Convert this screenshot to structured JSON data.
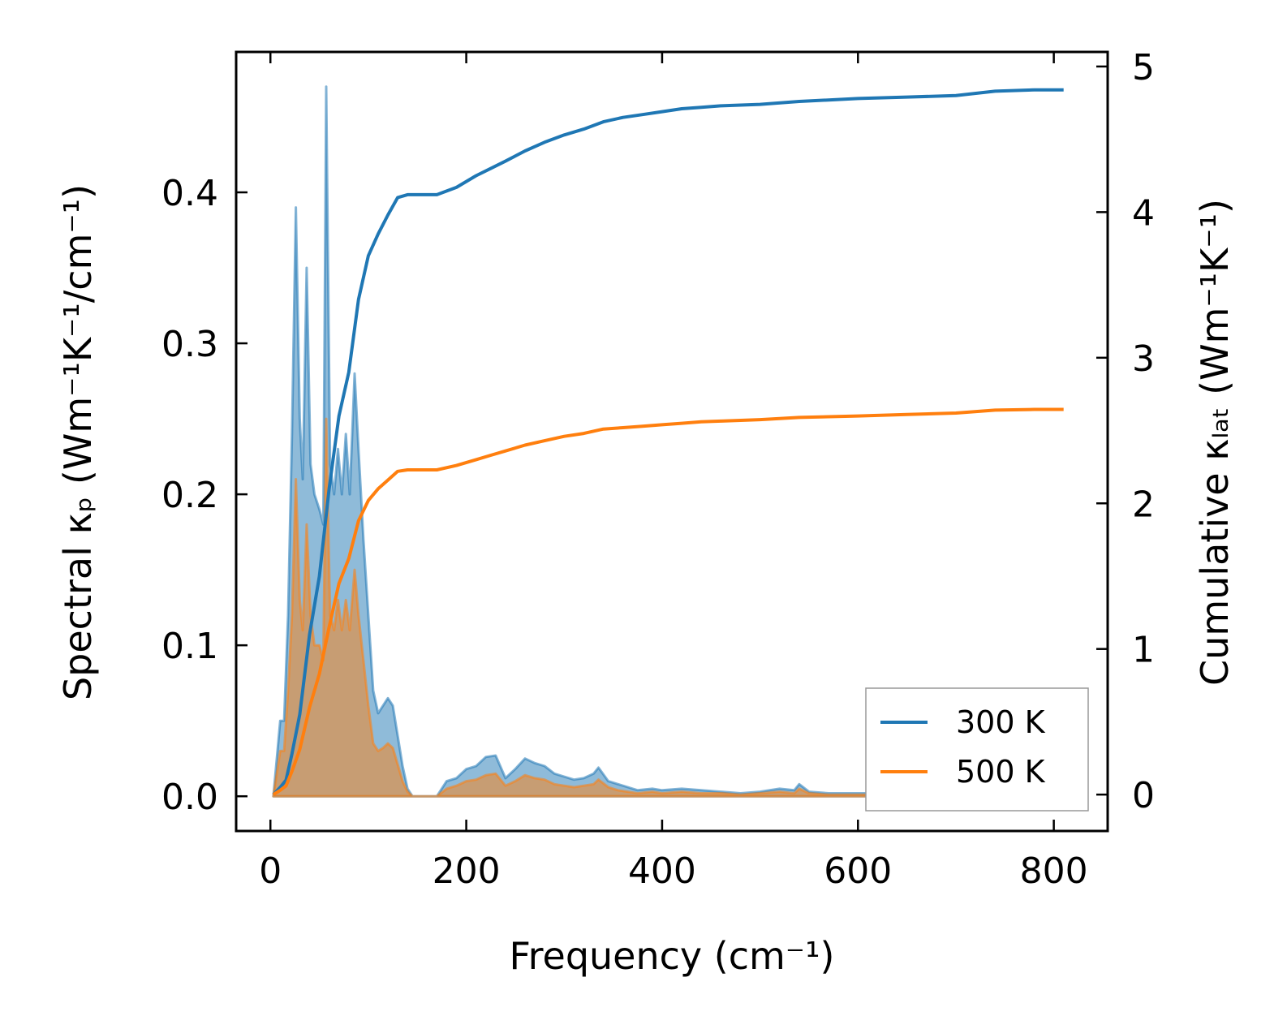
{
  "chart_data": {
    "type": "area",
    "xlabel": "Frequency (cm⁻¹)",
    "ylabel_left": "Spectral κₚ (Wm⁻¹K⁻¹/cm⁻¹)",
    "ylabel_right": "Cumulative κₗₐₜ (Wm⁻¹K⁻¹)",
    "xlim": [
      -35,
      855
    ],
    "ylim_left": [
      -0.023,
      0.493
    ],
    "ylim_right": [
      -0.25,
      5.1
    ],
    "x_ticks": [
      0,
      200,
      400,
      600,
      800
    ],
    "x_tick_labels": [
      "0",
      "200",
      "400",
      "600",
      "800"
    ],
    "y_left_ticks": [
      0.0,
      0.1,
      0.2,
      0.3,
      0.4
    ],
    "y_left_tick_labels": [
      "0.0",
      "0.1",
      "0.2",
      "0.3",
      "0.4"
    ],
    "y_right_ticks": [
      0,
      1,
      2,
      3,
      4,
      5
    ],
    "y_right_tick_labels": [
      "0",
      "1",
      "2",
      "3",
      "4",
      "5"
    ],
    "legend_position": "bottom-right",
    "series": [
      {
        "name": "300 K",
        "color": "#1f77b4",
        "spectral": [
          [
            3,
            0.0
          ],
          [
            10,
            0.05
          ],
          [
            14,
            0.05
          ],
          [
            18,
            0.12
          ],
          [
            22,
            0.24
          ],
          [
            26,
            0.39
          ],
          [
            30,
            0.25
          ],
          [
            33,
            0.21
          ],
          [
            37,
            0.35
          ],
          [
            41,
            0.22
          ],
          [
            45,
            0.2
          ],
          [
            50,
            0.19
          ],
          [
            54,
            0.18
          ],
          [
            57,
            0.47
          ],
          [
            61,
            0.22
          ],
          [
            65,
            0.2
          ],
          [
            69,
            0.23
          ],
          [
            73,
            0.2
          ],
          [
            77,
            0.24
          ],
          [
            81,
            0.2
          ],
          [
            86,
            0.28
          ],
          [
            90,
            0.23
          ],
          [
            95,
            0.17
          ],
          [
            100,
            0.12
          ],
          [
            105,
            0.07
          ],
          [
            110,
            0.055
          ],
          [
            115,
            0.06
          ],
          [
            120,
            0.065
          ],
          [
            125,
            0.06
          ],
          [
            130,
            0.04
          ],
          [
            135,
            0.02
          ],
          [
            140,
            0.005
          ],
          [
            145,
            0.0
          ],
          [
            155,
            0.0
          ],
          [
            170,
            0.0
          ],
          [
            180,
            0.01
          ],
          [
            190,
            0.012
          ],
          [
            200,
            0.018
          ],
          [
            210,
            0.02
          ],
          [
            220,
            0.026
          ],
          [
            230,
            0.027
          ],
          [
            240,
            0.012
          ],
          [
            250,
            0.018
          ],
          [
            260,
            0.025
          ],
          [
            270,
            0.022
          ],
          [
            280,
            0.02
          ],
          [
            290,
            0.015
          ],
          [
            300,
            0.013
          ],
          [
            310,
            0.011
          ],
          [
            320,
            0.012
          ],
          [
            330,
            0.015
          ],
          [
            335,
            0.019
          ],
          [
            345,
            0.01
          ],
          [
            355,
            0.008
          ],
          [
            365,
            0.006
          ],
          [
            375,
            0.004
          ],
          [
            390,
            0.005
          ],
          [
            400,
            0.004
          ],
          [
            420,
            0.005
          ],
          [
            440,
            0.004
          ],
          [
            460,
            0.003
          ],
          [
            480,
            0.002
          ],
          [
            500,
            0.003
          ],
          [
            520,
            0.005
          ],
          [
            535,
            0.004
          ],
          [
            540,
            0.008
          ],
          [
            550,
            0.003
          ],
          [
            570,
            0.002
          ],
          [
            600,
            0.002
          ],
          [
            630,
            0.002
          ],
          [
            660,
            0.003
          ],
          [
            700,
            0.003
          ],
          [
            720,
            0.005
          ],
          [
            740,
            0.003
          ],
          [
            760,
            0.001
          ],
          [
            790,
            0.001
          ],
          [
            810,
            0.0
          ]
        ],
        "cumulative": [
          [
            3,
            0.0
          ],
          [
            10,
            0.05
          ],
          [
            16,
            0.1
          ],
          [
            22,
            0.28
          ],
          [
            30,
            0.55
          ],
          [
            40,
            1.1
          ],
          [
            50,
            1.5
          ],
          [
            60,
            2.1
          ],
          [
            70,
            2.6
          ],
          [
            80,
            2.9
          ],
          [
            90,
            3.4
          ],
          [
            100,
            3.7
          ],
          [
            110,
            3.85
          ],
          [
            120,
            3.98
          ],
          [
            130,
            4.1
          ],
          [
            140,
            4.12
          ],
          [
            150,
            4.12
          ],
          [
            170,
            4.12
          ],
          [
            190,
            4.17
          ],
          [
            210,
            4.25
          ],
          [
            225,
            4.3
          ],
          [
            240,
            4.35
          ],
          [
            260,
            4.42
          ],
          [
            280,
            4.48
          ],
          [
            300,
            4.53
          ],
          [
            320,
            4.57
          ],
          [
            340,
            4.62
          ],
          [
            360,
            4.65
          ],
          [
            380,
            4.67
          ],
          [
            400,
            4.69
          ],
          [
            420,
            4.71
          ],
          [
            440,
            4.72
          ],
          [
            460,
            4.73
          ],
          [
            500,
            4.74
          ],
          [
            540,
            4.76
          ],
          [
            600,
            4.78
          ],
          [
            650,
            4.79
          ],
          [
            700,
            4.8
          ],
          [
            740,
            4.83
          ],
          [
            780,
            4.84
          ],
          [
            810,
            4.84
          ]
        ]
      },
      {
        "name": "500 K",
        "color": "#ff7f0e",
        "spectral": [
          [
            3,
            0.0
          ],
          [
            10,
            0.03
          ],
          [
            14,
            0.03
          ],
          [
            18,
            0.07
          ],
          [
            22,
            0.12
          ],
          [
            26,
            0.21
          ],
          [
            30,
            0.13
          ],
          [
            33,
            0.11
          ],
          [
            37,
            0.18
          ],
          [
            41,
            0.12
          ],
          [
            45,
            0.1
          ],
          [
            50,
            0.1
          ],
          [
            54,
            0.09
          ],
          [
            57,
            0.25
          ],
          [
            61,
            0.12
          ],
          [
            65,
            0.11
          ],
          [
            69,
            0.13
          ],
          [
            73,
            0.11
          ],
          [
            77,
            0.13
          ],
          [
            81,
            0.11
          ],
          [
            86,
            0.15
          ],
          [
            90,
            0.12
          ],
          [
            95,
            0.09
          ],
          [
            100,
            0.06
          ],
          [
            105,
            0.035
          ],
          [
            110,
            0.03
          ],
          [
            115,
            0.032
          ],
          [
            120,
            0.035
          ],
          [
            125,
            0.032
          ],
          [
            130,
            0.021
          ],
          [
            135,
            0.01
          ],
          [
            140,
            0.003
          ],
          [
            145,
            0.0
          ],
          [
            170,
            0.0
          ],
          [
            180,
            0.005
          ],
          [
            190,
            0.007
          ],
          [
            200,
            0.01
          ],
          [
            210,
            0.011
          ],
          [
            220,
            0.014
          ],
          [
            230,
            0.015
          ],
          [
            240,
            0.007
          ],
          [
            250,
            0.01
          ],
          [
            260,
            0.014
          ],
          [
            270,
            0.012
          ],
          [
            280,
            0.011
          ],
          [
            290,
            0.008
          ],
          [
            300,
            0.007
          ],
          [
            310,
            0.006
          ],
          [
            320,
            0.007
          ],
          [
            330,
            0.008
          ],
          [
            335,
            0.011
          ],
          [
            345,
            0.006
          ],
          [
            355,
            0.004
          ],
          [
            365,
            0.003
          ],
          [
            375,
            0.002
          ],
          [
            390,
            0.003
          ],
          [
            400,
            0.002
          ],
          [
            420,
            0.003
          ],
          [
            440,
            0.002
          ],
          [
            460,
            0.002
          ],
          [
            480,
            0.001
          ],
          [
            500,
            0.002
          ],
          [
            520,
            0.003
          ],
          [
            535,
            0.002
          ],
          [
            540,
            0.005
          ],
          [
            550,
            0.002
          ],
          [
            570,
            0.001
          ],
          [
            600,
            0.001
          ],
          [
            630,
            0.001
          ],
          [
            660,
            0.002
          ],
          [
            700,
            0.002
          ],
          [
            720,
            0.003
          ],
          [
            740,
            0.002
          ],
          [
            760,
            0.001
          ],
          [
            790,
            0.001
          ],
          [
            810,
            0.0
          ]
        ],
        "cumulative": [
          [
            3,
            0.0
          ],
          [
            10,
            0.03
          ],
          [
            16,
            0.06
          ],
          [
            22,
            0.16
          ],
          [
            30,
            0.31
          ],
          [
            40,
            0.6
          ],
          [
            50,
            0.83
          ],
          [
            60,
            1.15
          ],
          [
            70,
            1.45
          ],
          [
            80,
            1.62
          ],
          [
            90,
            1.88
          ],
          [
            100,
            2.02
          ],
          [
            110,
            2.1
          ],
          [
            120,
            2.16
          ],
          [
            130,
            2.22
          ],
          [
            140,
            2.23
          ],
          [
            150,
            2.23
          ],
          [
            170,
            2.23
          ],
          [
            190,
            2.26
          ],
          [
            210,
            2.3
          ],
          [
            225,
            2.33
          ],
          [
            240,
            2.36
          ],
          [
            260,
            2.4
          ],
          [
            280,
            2.43
          ],
          [
            300,
            2.46
          ],
          [
            320,
            2.48
          ],
          [
            340,
            2.51
          ],
          [
            360,
            2.52
          ],
          [
            380,
            2.53
          ],
          [
            400,
            2.54
          ],
          [
            420,
            2.55
          ],
          [
            440,
            2.56
          ],
          [
            460,
            2.565
          ],
          [
            500,
            2.575
          ],
          [
            540,
            2.59
          ],
          [
            600,
            2.6
          ],
          [
            650,
            2.61
          ],
          [
            700,
            2.62
          ],
          [
            740,
            2.64
          ],
          [
            780,
            2.645
          ],
          [
            810,
            2.645
          ]
        ]
      }
    ]
  }
}
